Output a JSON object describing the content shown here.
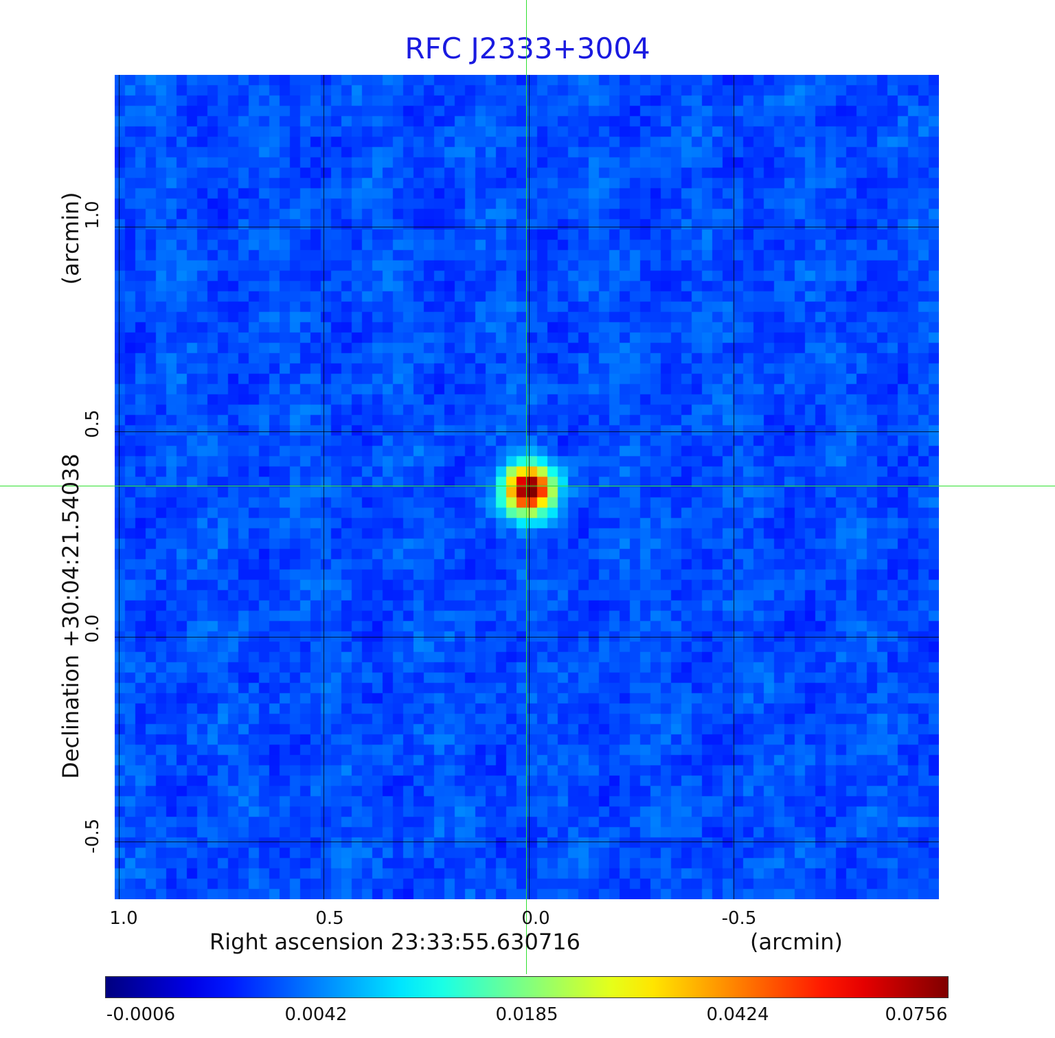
{
  "chart_data": {
    "type": "heatmap",
    "title": "RFC J2333+3004",
    "xlabel": "Right ascension  23:33:55.630716",
    "xunit": "(arcmin)",
    "ylabel": "Declination  +30:04:21.54038",
    "yunit": "(arcmin)",
    "x_ticks": [
      "1.0",
      "0.5",
      "0.0",
      "-0.5"
    ],
    "x_tick_values": [
      1.0,
      0.5,
      0.0,
      -0.5
    ],
    "y_ticks": [
      "1.0",
      "0.5",
      "0.0",
      "-0.5"
    ],
    "y_tick_values": [
      1.0,
      0.5,
      0.0,
      -0.5
    ],
    "xlim": [
      1.01,
      -1.0
    ],
    "ylim": [
      -0.64,
      1.37
    ],
    "grid": true,
    "colormap": "jet",
    "colorbar_ticks": [
      "-0.0006",
      "0.0042",
      "0.0185",
      "0.0424",
      "0.0756"
    ],
    "colorbar_values": [
      -0.0006,
      0.0042,
      0.0185,
      0.0424,
      0.0756
    ],
    "source": {
      "x": 0.0,
      "y": 0.36,
      "peak": 0.0756
    },
    "background_level": -0.0006,
    "crosshair": {
      "x": 0.0,
      "y": 0.36,
      "color": "#30e030"
    }
  }
}
